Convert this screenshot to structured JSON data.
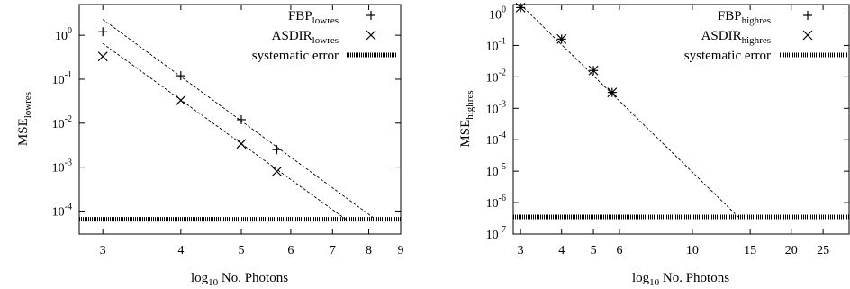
{
  "chart_data": [
    {
      "type": "scatter",
      "xscale": "log",
      "yscale": "log",
      "xlabel": "log10 No. Photons",
      "ylabel": "MSE_lowres",
      "xlim": [
        2.75,
        9
      ],
      "ylim": [
        3e-05,
        5
      ],
      "xticks": [
        "3",
        "4",
        "5",
        "6",
        "7",
        "8",
        "9"
      ],
      "yticks": [
        "10^0",
        "10^-1",
        "10^-2",
        "10^-3",
        "10^-4"
      ],
      "legend_position": "top-right",
      "series": [
        {
          "name": "FBP_lowres",
          "marker": "plus",
          "x": [
            3,
            4,
            5,
            5.7
          ],
          "y": [
            1.2,
            0.12,
            0.012,
            0.0025
          ]
        },
        {
          "name": "ASDIR_lowres",
          "marker": "cross",
          "x": [
            3,
            4,
            5,
            5.7
          ],
          "y": [
            0.33,
            0.033,
            0.0034,
            0.0008
          ]
        },
        {
          "name": "systematic error",
          "style": "hline",
          "y": 6.5e-05
        }
      ],
      "fit_lines": [
        {
          "x": [
            3,
            8.2
          ],
          "y": [
            2.3,
            6.5e-05
          ]
        },
        {
          "x": [
            3,
            7.35
          ],
          "y": [
            0.65,
            6.5e-05
          ]
        }
      ]
    },
    {
      "type": "scatter",
      "xscale": "log",
      "yscale": "log",
      "xlabel": "log10 No. Photons",
      "ylabel": "MSE_highres",
      "xlim": [
        2.85,
        30
      ],
      "ylim": [
        1e-07,
        2
      ],
      "xticks": [
        "3",
        "4",
        "5",
        "6",
        "10",
        "15",
        "20",
        "25"
      ],
      "yticks": [
        "10^0",
        "10^-1",
        "10^-2",
        "10^-3",
        "10^-4",
        "10^-5",
        "10^-6",
        "10^-7"
      ],
      "legend_position": "top-right",
      "series": [
        {
          "name": "FBP_highres",
          "marker": "plus",
          "x": [
            3,
            4,
            5,
            5.7
          ],
          "y": [
            1.6,
            0.16,
            0.016,
            0.0032
          ]
        },
        {
          "name": "ASDIR_highres",
          "marker": "cross",
          "x": [
            3,
            4,
            5,
            5.7
          ],
          "y": [
            1.6,
            0.16,
            0.016,
            0.0032
          ]
        },
        {
          "name": "systematic error",
          "style": "hline",
          "y": 3.5e-07
        }
      ],
      "fit_lines": [
        {
          "x": [
            3,
            13.8
          ],
          "y": [
            2.0,
            3.5e-07
          ]
        }
      ]
    }
  ],
  "text": {
    "left": {
      "ylabel_main": "MSE",
      "ylabel_sub": "lowres",
      "xlabel_pre": "log",
      "xlabel_sub": "10",
      "xlabel_post": " No. Photons",
      "legend": [
        {
          "main": "FBP",
          "sub": "lowres"
        },
        {
          "main": "ASDIR",
          "sub": "lowres"
        },
        {
          "main": "systematic error",
          "sub": ""
        }
      ]
    },
    "right": {
      "ylabel_main": "MSE",
      "ylabel_sub": "highres",
      "xlabel_pre": "log",
      "xlabel_sub": "10",
      "xlabel_post": " No. Photons",
      "legend": [
        {
          "main": "FBP",
          "sub": "highres"
        },
        {
          "main": "ASDIR",
          "sub": "highres"
        },
        {
          "main": "systematic error",
          "sub": ""
        }
      ]
    }
  }
}
